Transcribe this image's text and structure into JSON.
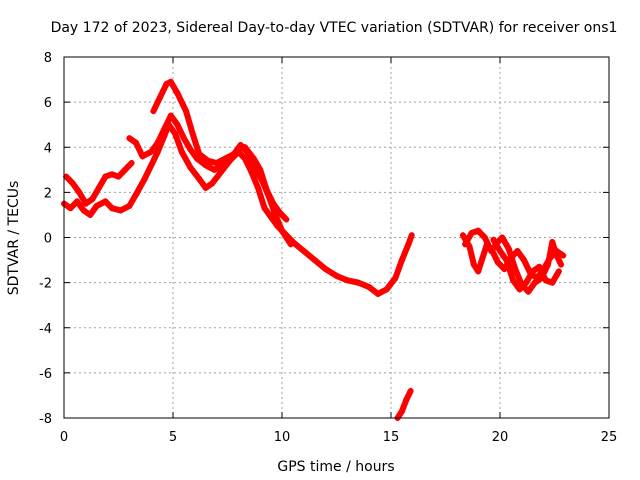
{
  "chart_data": {
    "type": "scatter",
    "title": "Day 172 of 2023, Sidereal Day-to-day VTEC variation (SDTVAR) for receiver ons1",
    "xlabel": "GPS time / hours",
    "ylabel": "SDTVAR / TECUs",
    "xlim": [
      0,
      25
    ],
    "ylim": [
      -8,
      8
    ],
    "xticks": [
      "0",
      "5",
      "10",
      "15",
      "20",
      "25"
    ],
    "yticks": [
      "-8",
      "-6",
      "-4",
      "-2",
      "0",
      "2",
      "4",
      "6",
      "8"
    ],
    "grid": true,
    "marker": "plus",
    "series": [
      {
        "name": "ons1",
        "color": "#ff0000",
        "segments": [
          [
            [
              0.0,
              1.5
            ],
            [
              0.3,
              1.3
            ],
            [
              0.6,
              1.6
            ],
            [
              0.9,
              1.2
            ],
            [
              1.2,
              1.0
            ],
            [
              1.5,
              1.4
            ],
            [
              1.9,
              1.6
            ],
            [
              2.2,
              1.3
            ],
            [
              2.6,
              1.2
            ],
            [
              3.0,
              1.4
            ],
            [
              3.3,
              1.9
            ],
            [
              3.7,
              2.6
            ],
            [
              4.0,
              3.2
            ],
            [
              4.3,
              3.8
            ],
            [
              4.6,
              4.5
            ],
            [
              4.8,
              5.0
            ],
            [
              5.1,
              4.6
            ],
            [
              5.4,
              3.8
            ],
            [
              5.8,
              3.1
            ],
            [
              6.2,
              2.6
            ],
            [
              6.5,
              2.2
            ],
            [
              6.8,
              2.4
            ],
            [
              7.2,
              2.9
            ],
            [
              7.6,
              3.4
            ],
            [
              8.0,
              3.8
            ],
            [
              8.3,
              3.5
            ],
            [
              8.6,
              2.9
            ],
            [
              8.9,
              2.2
            ],
            [
              9.2,
              1.3
            ],
            [
              9.5,
              0.9
            ],
            [
              9.8,
              0.5
            ],
            [
              10.1,
              0.2
            ],
            [
              10.5,
              -0.2
            ],
            [
              11.0,
              -0.6
            ],
            [
              11.5,
              -1.0
            ],
            [
              12.0,
              -1.4
            ],
            [
              12.5,
              -1.7
            ],
            [
              13.0,
              -1.9
            ],
            [
              13.5,
              -2.0
            ],
            [
              14.0,
              -2.2
            ],
            [
              14.4,
              -2.5
            ],
            [
              14.8,
              -2.3
            ],
            [
              15.2,
              -1.8
            ],
            [
              15.5,
              -1.0
            ],
            [
              15.8,
              -0.3
            ],
            [
              15.95,
              0.1
            ]
          ],
          [
            [
              0.1,
              2.7
            ],
            [
              0.4,
              2.4
            ],
            [
              0.7,
              2.0
            ],
            [
              1.0,
              1.5
            ],
            [
              1.3,
              1.7
            ],
            [
              1.6,
              2.2
            ],
            [
              1.9,
              2.7
            ],
            [
              2.2,
              2.8
            ],
            [
              2.5,
              2.7
            ],
            [
              2.8,
              3.0
            ],
            [
              3.1,
              3.3
            ]
          ],
          [
            [
              3.0,
              4.4
            ],
            [
              3.3,
              4.2
            ],
            [
              3.6,
              3.6
            ],
            [
              4.0,
              3.8
            ],
            [
              4.3,
              4.2
            ],
            [
              4.6,
              4.8
            ],
            [
              4.9,
              5.4
            ],
            [
              5.2,
              5.0
            ],
            [
              5.5,
              4.4
            ],
            [
              5.8,
              3.9
            ],
            [
              6.1,
              3.5
            ],
            [
              6.5,
              3.2
            ],
            [
              6.9,
              3.0
            ],
            [
              7.3,
              3.2
            ],
            [
              7.7,
              3.6
            ],
            [
              8.0,
              3.9
            ],
            [
              8.3,
              4.0
            ],
            [
              8.7,
              3.5
            ],
            [
              9.0,
              3.0
            ],
            [
              9.3,
              2.1
            ],
            [
              9.6,
              1.5
            ],
            [
              9.9,
              1.1
            ],
            [
              10.2,
              0.8
            ]
          ],
          [
            [
              4.1,
              5.6
            ],
            [
              4.4,
              6.2
            ],
            [
              4.7,
              6.8
            ],
            [
              4.9,
              6.9
            ],
            [
              5.2,
              6.4
            ],
            [
              5.6,
              5.6
            ],
            [
              5.9,
              4.6
            ],
            [
              6.2,
              3.7
            ],
            [
              6.6,
              3.4
            ],
            [
              7.0,
              3.3
            ],
            [
              7.4,
              3.5
            ],
            [
              7.8,
              3.7
            ],
            [
              8.1,
              4.1
            ],
            [
              8.4,
              3.8
            ],
            [
              8.7,
              3.2
            ],
            [
              9.1,
              2.5
            ],
            [
              9.4,
              1.8
            ],
            [
              9.7,
              1.0
            ],
            [
              10.0,
              0.3
            ],
            [
              10.4,
              -0.3
            ]
          ],
          [
            [
              15.3,
              -8.0
            ],
            [
              15.5,
              -7.7
            ],
            [
              15.7,
              -7.2
            ],
            [
              15.9,
              -6.8
            ]
          ],
          [
            [
              18.3,
              0.1
            ],
            [
              18.6,
              -0.4
            ],
            [
              18.8,
              -1.2
            ],
            [
              19.0,
              -1.5
            ],
            [
              19.2,
              -0.9
            ],
            [
              19.4,
              -0.3
            ],
            [
              19.6,
              -0.5
            ],
            [
              19.9,
              -1.1
            ],
            [
              20.2,
              -1.4
            ],
            [
              20.5,
              -0.9
            ],
            [
              20.8,
              -0.6
            ],
            [
              21.1,
              -1.0
            ],
            [
              21.4,
              -1.6
            ],
            [
              21.7,
              -1.8
            ],
            [
              22.0,
              -1.4
            ],
            [
              22.3,
              -0.9
            ],
            [
              22.6,
              -0.6
            ],
            [
              22.9,
              -0.8
            ]
          ],
          [
            [
              18.4,
              -0.3
            ],
            [
              18.7,
              0.2
            ],
            [
              19.0,
              0.3
            ],
            [
              19.3,
              0.0
            ],
            [
              19.6,
              -0.6
            ],
            [
              19.9,
              -0.2
            ],
            [
              20.1,
              0.0
            ],
            [
              20.4,
              -0.5
            ],
            [
              20.7,
              -1.4
            ],
            [
              21.0,
              -2.1
            ],
            [
              21.3,
              -2.4
            ],
            [
              21.6,
              -2.0
            ],
            [
              21.9,
              -1.8
            ],
            [
              22.2,
              -1.2
            ],
            [
              22.4,
              -0.2
            ],
            [
              22.6,
              -0.8
            ],
            [
              22.8,
              -1.2
            ]
          ],
          [
            [
              19.7,
              -0.1
            ],
            [
              20.0,
              -0.6
            ],
            [
              20.3,
              -1.0
            ],
            [
              20.6,
              -1.9
            ],
            [
              20.9,
              -2.3
            ],
            [
              21.2,
              -2.0
            ],
            [
              21.5,
              -1.5
            ],
            [
              21.8,
              -1.3
            ],
            [
              22.1,
              -1.9
            ],
            [
              22.4,
              -2.0
            ],
            [
              22.7,
              -1.5
            ]
          ]
        ]
      }
    ]
  }
}
